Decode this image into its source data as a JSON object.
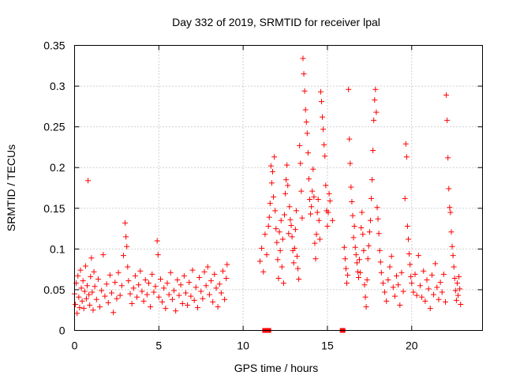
{
  "chart_data": {
    "type": "scatter",
    "title": "Day 332 of 2019, SRMTID for receiver lpal",
    "xlabel": "GPS time / hours",
    "ylabel": "SRMTID / TECUs",
    "xlim": [
      0,
      24.2
    ],
    "ylim": [
      0,
      0.35
    ],
    "xticks": [
      0,
      5,
      10,
      15,
      20
    ],
    "xtick_labels": [
      "0",
      "5",
      "10",
      "15",
      "20"
    ],
    "yticks": [
      0,
      0.05,
      0.1,
      0.15,
      0.2,
      0.25,
      0.3,
      0.35
    ],
    "ytick_labels": [
      "0",
      "0.05",
      "0.1",
      "0.15",
      "0.2",
      "0.25",
      "0.3",
      "0.35"
    ],
    "grid": true,
    "marker": "plus",
    "color": "#ff0000",
    "series": [
      {
        "name": "SRMTID",
        "points": [
          [
            0.0,
            0.045
          ],
          [
            0.05,
            0.032
          ],
          [
            0.1,
            0.058
          ],
          [
            0.15,
            0.021
          ],
          [
            0.2,
            0.067
          ],
          [
            0.25,
            0.041
          ],
          [
            0.3,
            0.028
          ],
          [
            0.35,
            0.074
          ],
          [
            0.4,
            0.052
          ],
          [
            0.45,
            0.036
          ],
          [
            0.5,
            0.061
          ],
          [
            0.55,
            0.027
          ],
          [
            0.6,
            0.048
          ],
          [
            0.65,
            0.079
          ],
          [
            0.7,
            0.039
          ],
          [
            0.75,
            0.055
          ],
          [
            0.8,
            0.184
          ],
          [
            0.85,
            0.044
          ],
          [
            0.9,
            0.031
          ],
          [
            0.95,
            0.066
          ],
          [
            1.0,
            0.089
          ],
          [
            1.05,
            0.047
          ],
          [
            1.1,
            0.025
          ],
          [
            1.15,
            0.072
          ],
          [
            1.2,
            0.054
          ],
          [
            1.3,
            0.038
          ],
          [
            1.4,
            0.063
          ],
          [
            1.5,
            0.029
          ],
          [
            1.6,
            0.049
          ],
          [
            1.7,
            0.093
          ],
          [
            1.8,
            0.042
          ],
          [
            1.9,
            0.057
          ],
          [
            2.0,
            0.034
          ],
          [
            2.1,
            0.068
          ],
          [
            2.2,
            0.046
          ],
          [
            2.3,
            0.022
          ],
          [
            2.4,
            0.059
          ],
          [
            2.5,
            0.039
          ],
          [
            2.6,
            0.071
          ],
          [
            2.7,
            0.043
          ],
          [
            2.8,
            0.055
          ],
          [
            2.9,
            0.092
          ],
          [
            3.0,
            0.132
          ],
          [
            3.05,
            0.115
          ],
          [
            3.1,
            0.103
          ],
          [
            3.15,
            0.078
          ],
          [
            3.2,
            0.061
          ],
          [
            3.3,
            0.045
          ],
          [
            3.4,
            0.033
          ],
          [
            3.5,
            0.052
          ],
          [
            3.6,
            0.067
          ],
          [
            3.7,
            0.041
          ],
          [
            3.8,
            0.056
          ],
          [
            3.9,
            0.073
          ],
          [
            4.0,
            0.048
          ],
          [
            4.1,
            0.036
          ],
          [
            4.2,
            0.062
          ],
          [
            4.3,
            0.044
          ],
          [
            4.4,
            0.058
          ],
          [
            4.5,
            0.029
          ],
          [
            4.6,
            0.069
          ],
          [
            4.7,
            0.047
          ],
          [
            4.8,
            0.054
          ],
          [
            4.9,
            0.11
          ],
          [
            4.95,
            0.093
          ],
          [
            5.0,
            0.041
          ],
          [
            5.1,
            0.063
          ],
          [
            5.2,
            0.035
          ],
          [
            5.3,
            0.052
          ],
          [
            5.4,
            0.027
          ],
          [
            5.5,
            0.058
          ],
          [
            5.6,
            0.044
          ],
          [
            5.7,
            0.071
          ],
          [
            5.8,
            0.038
          ],
          [
            5.9,
            0.049
          ],
          [
            6.0,
            0.024
          ],
          [
            6.1,
            0.062
          ],
          [
            6.2,
            0.043
          ],
          [
            6.3,
            0.056
          ],
          [
            6.4,
            0.033
          ],
          [
            6.5,
            0.067
          ],
          [
            6.6,
            0.046
          ],
          [
            6.7,
            0.031
          ],
          [
            6.8,
            0.059
          ],
          [
            6.9,
            0.042
          ],
          [
            7.0,
            0.074
          ],
          [
            7.1,
            0.037
          ],
          [
            7.2,
            0.053
          ],
          [
            7.3,
            0.028
          ],
          [
            7.4,
            0.065
          ],
          [
            7.5,
            0.048
          ],
          [
            7.6,
            0.039
          ],
          [
            7.7,
            0.072
          ],
          [
            7.8,
            0.055
          ],
          [
            7.9,
            0.078
          ],
          [
            8.0,
            0.044
          ],
          [
            8.1,
            0.061
          ],
          [
            8.2,
            0.035
          ],
          [
            8.3,
            0.069
          ],
          [
            8.4,
            0.052
          ],
          [
            8.5,
            0.029
          ],
          [
            8.6,
            0.057
          ],
          [
            8.7,
            0.046
          ],
          [
            8.8,
            0.073
          ],
          [
            8.9,
            0.038
          ],
          [
            9.0,
            0.064
          ],
          [
            9.05,
            0.081
          ],
          [
            11.3,
            0.0
          ],
          [
            11.5,
            0.0
          ],
          [
            15.9,
            0.0
          ],
          [
            11.0,
            0.085
          ],
          [
            11.1,
            0.101
          ],
          [
            11.2,
            0.072
          ],
          [
            11.3,
            0.118
          ],
          [
            11.4,
            0.093
          ],
          [
            11.5,
            0.128
          ],
          [
            11.55,
            0.139
          ],
          [
            11.6,
            0.156
          ],
          [
            11.65,
            0.202
          ],
          [
            11.7,
            0.181
          ],
          [
            11.75,
            0.195
          ],
          [
            11.8,
            0.164
          ],
          [
            11.85,
            0.213
          ],
          [
            11.9,
            0.147
          ],
          [
            11.95,
            0.125
          ],
          [
            12.0,
            0.108
          ],
          [
            12.05,
            0.087
          ],
          [
            12.1,
            0.064
          ],
          [
            12.15,
            0.121
          ],
          [
            12.2,
            0.098
          ],
          [
            12.25,
            0.135
          ],
          [
            12.3,
            0.078
          ],
          [
            12.35,
            0.112
          ],
          [
            12.4,
            0.058
          ],
          [
            12.45,
            0.142
          ],
          [
            12.5,
            0.168
          ],
          [
            12.55,
            0.185
          ],
          [
            12.6,
            0.203
          ],
          [
            12.65,
            0.178
          ],
          [
            12.7,
            0.119
          ],
          [
            12.75,
            0.152
          ],
          [
            12.8,
            0.136
          ],
          [
            12.85,
            0.129
          ],
          [
            12.9,
            0.115
          ],
          [
            12.95,
            0.098
          ],
          [
            13.0,
            0.083
          ],
          [
            13.05,
            0.101
          ],
          [
            13.1,
            0.124
          ],
          [
            13.15,
            0.147
          ],
          [
            13.2,
            0.091
          ],
          [
            13.25,
            0.076
          ],
          [
            13.3,
            0.063
          ],
          [
            13.35,
            0.227
          ],
          [
            13.4,
            0.205
          ],
          [
            13.45,
            0.171
          ],
          [
            13.5,
            0.138
          ],
          [
            13.55,
            0.334
          ],
          [
            13.6,
            0.315
          ],
          [
            13.65,
            0.294
          ],
          [
            13.7,
            0.271
          ],
          [
            13.75,
            0.256
          ],
          [
            13.8,
            0.242
          ],
          [
            13.85,
            0.218
          ],
          [
            13.9,
            0.186
          ],
          [
            13.95,
            0.161
          ],
          [
            14.0,
            0.143
          ],
          [
            14.05,
            0.152
          ],
          [
            14.1,
            0.171
          ],
          [
            14.15,
            0.198
          ],
          [
            14.2,
            0.164
          ],
          [
            14.25,
            0.107
          ],
          [
            14.3,
            0.088
          ],
          [
            14.35,
            0.118
          ],
          [
            14.4,
            0.145
          ],
          [
            14.45,
            0.161
          ],
          [
            14.5,
            0.135
          ],
          [
            14.55,
            0.112
          ],
          [
            14.6,
            0.293
          ],
          [
            14.65,
            0.281
          ],
          [
            14.7,
            0.262
          ],
          [
            14.75,
            0.247
          ],
          [
            14.8,
            0.228
          ],
          [
            14.85,
            0.214
          ],
          [
            14.9,
            0.178
          ],
          [
            14.95,
            0.147
          ],
          [
            15.0,
            0.128
          ],
          [
            15.05,
            0.145
          ],
          [
            15.1,
            0.168
          ],
          [
            15.15,
            0.159
          ],
          [
            15.3,
            0.135
          ],
          [
            16.0,
            0.102
          ],
          [
            16.05,
            0.088
          ],
          [
            16.1,
            0.076
          ],
          [
            16.15,
            0.058
          ],
          [
            16.2,
            0.068
          ],
          [
            16.25,
            0.296
          ],
          [
            16.3,
            0.235
          ],
          [
            16.35,
            0.205
          ],
          [
            16.4,
            0.176
          ],
          [
            16.45,
            0.158
          ],
          [
            16.5,
            0.141
          ],
          [
            16.55,
            0.114
          ],
          [
            16.6,
            0.128
          ],
          [
            16.65,
            0.102
          ],
          [
            16.7,
            0.093
          ],
          [
            16.75,
            0.083
          ],
          [
            16.8,
            0.072
          ],
          [
            16.85,
            0.065
          ],
          [
            16.9,
            0.087
          ],
          [
            16.95,
            0.071
          ],
          [
            17.0,
            0.126
          ],
          [
            17.05,
            0.145
          ],
          [
            17.1,
            0.118
          ],
          [
            17.15,
            0.098
          ],
          [
            17.2,
            0.056
          ],
          [
            17.25,
            0.041
          ],
          [
            17.3,
            0.029
          ],
          [
            17.35,
            0.062
          ],
          [
            17.4,
            0.088
          ],
          [
            17.45,
            0.104
          ],
          [
            17.5,
            0.121
          ],
          [
            17.55,
            0.135
          ],
          [
            17.6,
            0.162
          ],
          [
            17.65,
            0.185
          ],
          [
            17.7,
            0.221
          ],
          [
            17.75,
            0.258
          ],
          [
            17.8,
            0.283
          ],
          [
            17.85,
            0.296
          ],
          [
            17.9,
            0.268
          ],
          [
            17.95,
            0.151
          ],
          [
            18.0,
            0.137
          ],
          [
            18.05,
            0.119
          ],
          [
            18.1,
            0.098
          ],
          [
            18.15,
            0.084
          ],
          [
            18.2,
            0.071
          ],
          [
            18.3,
            0.058
          ],
          [
            18.4,
            0.047
          ],
          [
            18.5,
            0.036
          ],
          [
            18.6,
            0.062
          ],
          [
            18.7,
            0.078
          ],
          [
            18.8,
            0.091
          ],
          [
            18.9,
            0.053
          ],
          [
            19.0,
            0.042
          ],
          [
            19.1,
            0.067
          ],
          [
            19.2,
            0.056
          ],
          [
            19.3,
            0.031
          ],
          [
            19.4,
            0.071
          ],
          [
            19.5,
            0.048
          ],
          [
            19.6,
            0.162
          ],
          [
            19.65,
            0.229
          ],
          [
            19.7,
            0.213
          ],
          [
            19.75,
            0.128
          ],
          [
            19.8,
            0.112
          ],
          [
            19.85,
            0.094
          ],
          [
            19.9,
            0.081
          ],
          [
            19.95,
            0.066
          ],
          [
            20.0,
            0.058
          ],
          [
            20.1,
            0.047
          ],
          [
            20.2,
            0.069
          ],
          [
            20.3,
            0.043
          ],
          [
            20.4,
            0.092
          ],
          [
            20.5,
            0.055
          ],
          [
            20.6,
            0.041
          ],
          [
            20.7,
            0.073
          ],
          [
            20.8,
            0.036
          ],
          [
            20.9,
            0.062
          ],
          [
            21.0,
            0.051
          ],
          [
            21.1,
            0.027
          ],
          [
            21.2,
            0.068
          ],
          [
            21.3,
            0.044
          ],
          [
            21.4,
            0.082
          ],
          [
            21.5,
            0.053
          ],
          [
            21.6,
            0.038
          ],
          [
            21.7,
            0.059
          ],
          [
            21.8,
            0.047
          ],
          [
            21.9,
            0.069
          ],
          [
            22.0,
            0.035
          ],
          [
            22.05,
            0.289
          ],
          [
            22.1,
            0.258
          ],
          [
            22.15,
            0.212
          ],
          [
            22.2,
            0.174
          ],
          [
            22.25,
            0.151
          ],
          [
            22.3,
            0.145
          ],
          [
            22.35,
            0.121
          ],
          [
            22.4,
            0.103
          ],
          [
            22.45,
            0.092
          ],
          [
            22.5,
            0.078
          ],
          [
            22.55,
            0.064
          ],
          [
            22.6,
            0.049
          ],
          [
            22.65,
            0.037
          ],
          [
            22.7,
            0.058
          ],
          [
            22.75,
            0.043
          ],
          [
            22.8,
            0.066
          ],
          [
            22.85,
            0.051
          ],
          [
            22.9,
            0.032
          ]
        ]
      }
    ]
  }
}
